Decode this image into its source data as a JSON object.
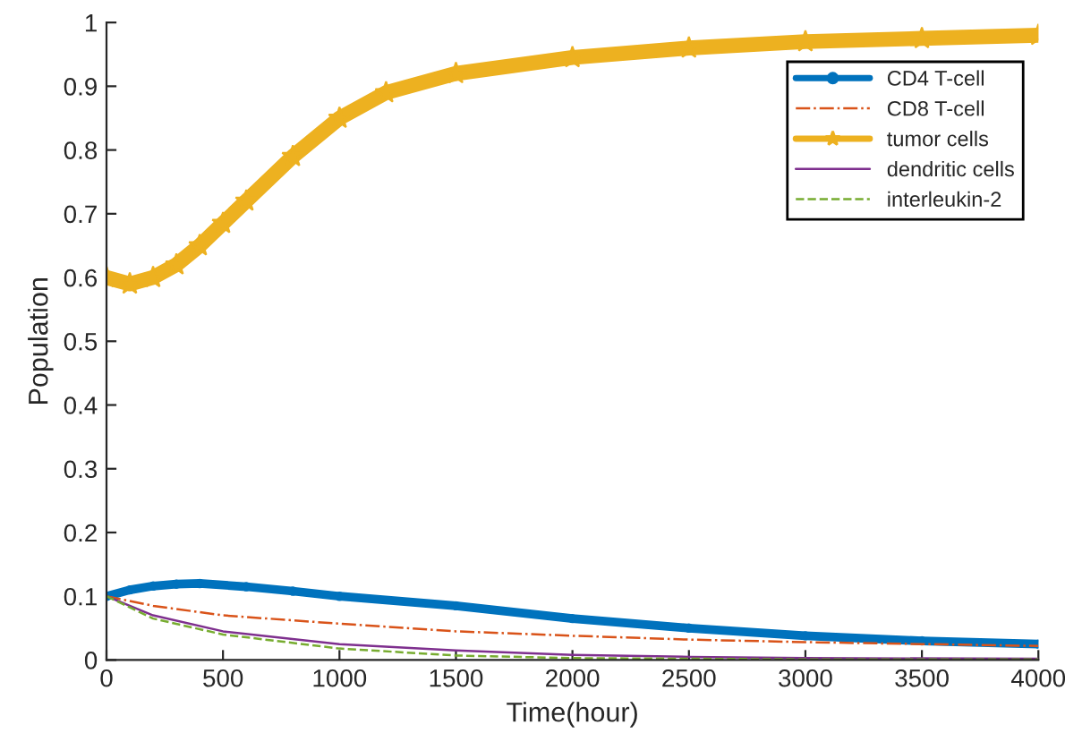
{
  "chart_data": {
    "type": "line",
    "xlabel": "Time(hour)",
    "ylabel": "Population",
    "xlim": [
      0,
      4000
    ],
    "xticks": [
      0,
      500,
      1000,
      1500,
      2000,
      2500,
      3000,
      3500,
      4000
    ],
    "ylim": [
      0,
      1
    ],
    "yticks": [
      0,
      0.1,
      0.2,
      0.3,
      0.4,
      0.5,
      0.6,
      0.7,
      0.8,
      0.9,
      1
    ],
    "grid": false,
    "legend": "top right",
    "series": [
      {
        "name": "CD4 T-cell",
        "color": "#0072bd",
        "marker": "circle",
        "line_style": "solid",
        "x": [
          0,
          100,
          200,
          300,
          400,
          600,
          800,
          1000,
          1500,
          2000,
          2500,
          3000,
          3500,
          4000
        ],
        "values": [
          0.1,
          0.11,
          0.116,
          0.119,
          0.12,
          0.115,
          0.108,
          0.1,
          0.085,
          0.065,
          0.05,
          0.038,
          0.03,
          0.025
        ]
      },
      {
        "name": "CD8 T-cell",
        "color": "#d95319",
        "marker": "none",
        "line_style": "dashdot",
        "x": [
          0,
          200,
          500,
          1000,
          1500,
          2000,
          2500,
          3000,
          3500,
          4000
        ],
        "values": [
          0.1,
          0.085,
          0.07,
          0.057,
          0.045,
          0.038,
          0.032,
          0.028,
          0.025,
          0.022
        ]
      },
      {
        "name": "tumor cells",
        "color": "#edb120",
        "marker": "star",
        "line_style": "solid",
        "x": [
          0,
          100,
          200,
          300,
          400,
          500,
          600,
          800,
          1000,
          1200,
          1500,
          2000,
          2500,
          3000,
          3500,
          4000
        ],
        "values": [
          0.6,
          0.59,
          0.6,
          0.62,
          0.65,
          0.685,
          0.72,
          0.79,
          0.85,
          0.89,
          0.92,
          0.945,
          0.96,
          0.97,
          0.975,
          0.98
        ]
      },
      {
        "name": "dendritic cells",
        "color": "#7e2f8e",
        "marker": "none",
        "line_style": "solid",
        "x": [
          0,
          200,
          500,
          1000,
          1500,
          2000,
          2500,
          3000,
          4000
        ],
        "values": [
          0.1,
          0.07,
          0.045,
          0.025,
          0.015,
          0.008,
          0.005,
          0.003,
          0.002
        ]
      },
      {
        "name": "interleukin-2",
        "color": "#77ac30",
        "marker": "none",
        "line_style": "dashed",
        "x": [
          0,
          200,
          500,
          1000,
          1500,
          2000,
          2500,
          3000,
          4000
        ],
        "values": [
          0.1,
          0.065,
          0.04,
          0.018,
          0.007,
          0.003,
          0.002,
          0.001,
          0.001
        ]
      }
    ]
  }
}
